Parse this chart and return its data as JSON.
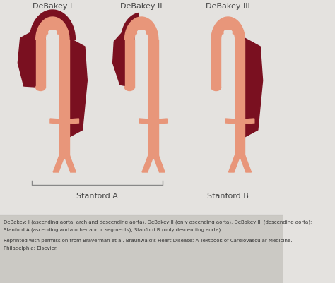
{
  "bg_color": "#e4e2df",
  "footer_bg": "#cbc9c4",
  "aorta_color": "#e8967a",
  "dissection_color": "#7a1020",
  "title_color": "#444444",
  "footer_text_color": "#333333",
  "labels": [
    "DeBakey I",
    "DeBakey II",
    "DeBakey III"
  ],
  "stanford_a_label": "Stanford A",
  "stanford_b_label": "Stanford B",
  "caption_line1": "DeBakey: I (ascending aorta, arch and descending aorta), DeBakey II (only ascending aorta), DeBakey III (descending aorta);",
  "caption_line2": "Stanford A (ascending aorta other aortic segments), Stanford B (only descending aorta).",
  "caption_line3": "Reprinted with permission from Braverman et al. Braunwald’s Heart Disease: A Textbook of Cardiovascular Medicine.",
  "caption_line4": "Philadelphia: Elsevier.",
  "fig_width": 4.74,
  "fig_height": 4.02,
  "dpi": 100
}
